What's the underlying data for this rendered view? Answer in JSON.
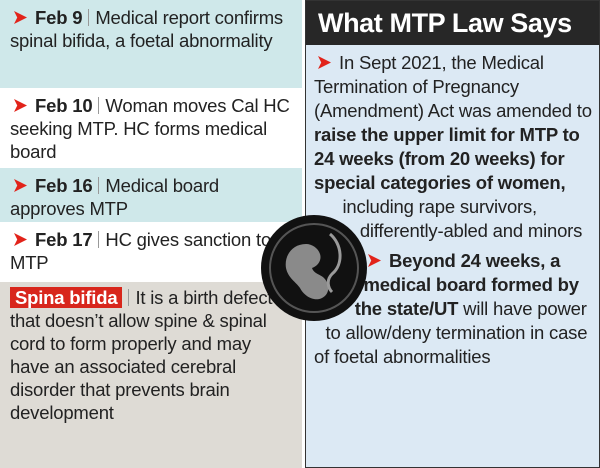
{
  "timeline": [
    {
      "date": "Feb 9",
      "text": "Medical report confirms spinal bifida, a foetal abnormality"
    },
    {
      "date": "Feb 10",
      "text": "Woman moves Cal HC seeking MTP. HC forms medical board"
    },
    {
      "date": "Feb 16",
      "text": "Medical board approves MTP"
    },
    {
      "date": "Feb 17",
      "text": "HC gives sanction to MTP"
    }
  ],
  "note": {
    "term": "Spina bifida",
    "text": "It is a birth defect that doesn’t allow spine & spinal cord to form properly and may have an associated cerebral disorder that prevents brain development"
  },
  "law": {
    "title": "What MTP Law Says",
    "points": [
      {
        "parts": [
          {
            "text": "In Sept 2021, the Medical Termination of Pregnancy (Amendment) Act was amended to ",
            "bold": false
          },
          {
            "text": "raise the upper limit for MTP to 24 weeks (from 20 weeks) for special categories of women,",
            "bold": true
          },
          {
            "text": " including rape survivors, differently-abled and minors",
            "bold": false
          }
        ]
      },
      {
        "parts": [
          {
            "text": "Beyond 24 weeks, a medical board formed by the state/UT",
            "bold": true
          },
          {
            "text": " will have power to allow/deny termination in case of foetal abnormalities",
            "bold": false
          }
        ]
      }
    ]
  }
}
